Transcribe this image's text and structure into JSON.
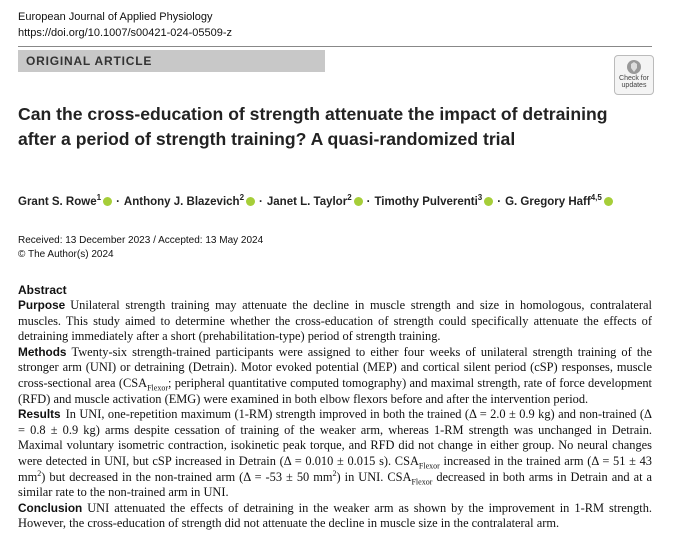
{
  "header": {
    "journal": "European Journal of Applied Physiology",
    "doi": "https://doi.org/10.1007/s00421-024-05509-z",
    "article_type": "ORIGINAL ARTICLE",
    "badge": [
      "Check for",
      "updates"
    ]
  },
  "title": "Can the cross-education of strength attenuate the impact of detraining after a period of strength training? A quasi-randomized trial",
  "authors": [
    {
      "name": "Grant S. Rowe",
      "affil": "1"
    },
    {
      "name": "Anthony J. Blazevich",
      "affil": "2"
    },
    {
      "name": "Janet L. Taylor",
      "affil": "2"
    },
    {
      "name": "Timothy Pulverenti",
      "affil": "3"
    },
    {
      "name": "G. Gregory Haff",
      "affil": "4,5"
    }
  ],
  "dates": [
    "Received: 13 December 2023 / Accepted: 13 May 2024",
    "© The Author(s) 2024"
  ],
  "abstract": {
    "heading": "Abstract",
    "sections": [
      {
        "label": "Purpose",
        "text": [
          "Unilateral strength training may attenuate the decline in muscle strength and size in homologous, contralateral muscles. This study aimed to determine whether the cross-education of strength could specifically attenuate the effects of detraining immediately after a short (prehabilitation-type) period of strength training."
        ]
      },
      {
        "label": "Methods",
        "text": [
          "Twenty-six strength-trained participants were assigned to either four weeks of unilateral strength training of the stronger arm (UNI) or detraining (Detrain). Motor evoked potential (MEP) and cortical silent period (cSP) responses, muscle cross-sectional area (CSA",
          {
            "sub": "Flexor"
          },
          "; peripheral quantitative computed tomography) and maximal strength, rate of force development (RFD) and muscle activation (EMG) were examined in both elbow flexors before and after the intervention period."
        ]
      },
      {
        "label": "Results",
        "text": [
          "In UNI, one-repetition maximum (1-RM) strength improved in both the trained (Δ = 2.0 ± 0.9 kg) and non-trained (Δ = 0.8 ± 0.9 kg) arms despite cessation of training of the weaker arm, whereas 1-RM strength was unchanged in Detrain. Maximal voluntary isometric contraction, isokinetic peak torque, and RFD did not change in either group. No neural changes were detected in UNI, but cSP increased in Detrain (Δ = 0.010 ± 0.015 s). CSA",
          {
            "sub": "Flexor"
          },
          " increased in the trained arm (Δ = 51 ± 43 mm",
          {
            "sup": "2"
          },
          ") but decreased in the non-trained arm (Δ = -53 ± 50 mm",
          {
            "sup": "2"
          },
          ") in UNI. CSA",
          {
            "sub": "Flexor"
          },
          " decreased in both arms in Detrain and at a similar rate to the non-trained arm in UNI."
        ]
      },
      {
        "label": "Conclusion",
        "text": [
          "UNI attenuated the effects of detraining in the weaker arm as shown by the improvement in 1-RM strength. However, the cross-education of strength did not attenuate the decline in muscle size in the contralateral arm."
        ]
      }
    ]
  }
}
